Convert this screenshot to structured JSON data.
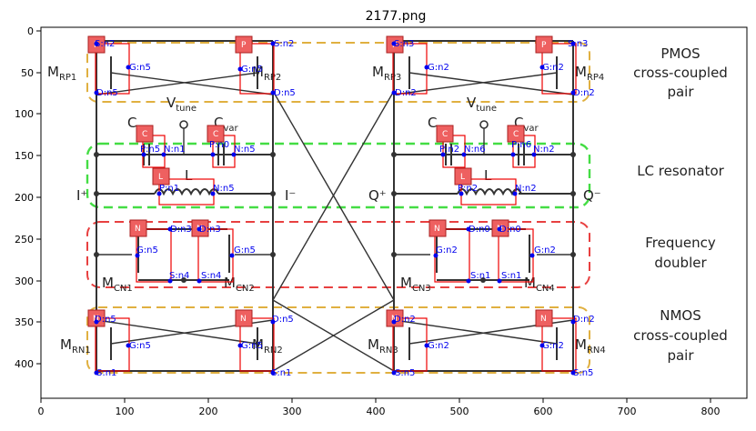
{
  "figure": {
    "title": "2177.png",
    "x_ticks": [
      "0",
      "100",
      "200",
      "300",
      "400",
      "500",
      "600",
      "700",
      "800"
    ],
    "y_ticks": [
      "0",
      "50",
      "100",
      "150",
      "200",
      "250",
      "300",
      "350",
      "400"
    ]
  },
  "blocks": {
    "pmos": {
      "line1": "PMOS",
      "line2": "cross-coupled",
      "line3": "pair"
    },
    "lc": {
      "line1": "LC resonator"
    },
    "doubler": {
      "line1": "Frequency",
      "line2": "doubler"
    },
    "nmos": {
      "line1": "NMOS",
      "line2": "cross-coupled",
      "line3": "pair"
    }
  },
  "labels": {
    "mrp1": {
      "main": "M",
      "sub": "RP1"
    },
    "mrp2": {
      "main": "M",
      "sub": "RP2"
    },
    "mrp3": {
      "main": "M",
      "sub": "RP3"
    },
    "mrp4": {
      "main": "M",
      "sub": "RP4"
    },
    "vtune1": {
      "main": "V",
      "sub": "tune"
    },
    "vtune2": {
      "main": "V",
      "sub": "tune"
    },
    "cvar1": {
      "main": "C",
      "sub": "var"
    },
    "cvar2": {
      "main": "C",
      "sub": "var"
    },
    "cvar3": {
      "main": "C",
      "sub": "var"
    },
    "cvar4": {
      "main": "C",
      "sub": "var"
    },
    "l1": "L",
    "l2": "L",
    "iplus": "I⁺",
    "iminus": "I⁻",
    "qplus": "Q⁺",
    "qminus": "Q⁻",
    "mcn1": {
      "main": "M",
      "sub": "CN1"
    },
    "mcn2": {
      "main": "M",
      "sub": "CN2"
    },
    "mcn3": {
      "main": "M",
      "sub": "CN3"
    },
    "mcn4": {
      "main": "M",
      "sub": "CN4"
    },
    "mrn1": {
      "main": "M",
      "sub": "RN1"
    },
    "mrn2": {
      "main": "M",
      "sub": "RN2"
    },
    "mrn3": {
      "main": "M",
      "sub": "RN3"
    },
    "mrn4": {
      "main": "M",
      "sub": "RN4"
    }
  },
  "annotations": {
    "tags": {
      "p1": "P",
      "p2": "P",
      "p3": "P",
      "p4": "P",
      "c1": "C",
      "c2": "C",
      "c3": "C",
      "c4": "C",
      "l1": "L",
      "l2": "L",
      "n1": "N",
      "n2": "N",
      "n3": "N",
      "n4": "N",
      "nr1": "N",
      "nr2": "N",
      "nr3": "N",
      "nr4": "N"
    },
    "pins": {
      "p1s": "S:n2",
      "p1g": "G:n5",
      "p1d": "D:n5",
      "p2s": "S:n2",
      "p2g": "G:n5",
      "p2d": "D:n5",
      "p3s": "S:n3",
      "p3g": "G:n2",
      "p3d": "D:n2",
      "p4s": "S:n3",
      "p4g": "G:n2",
      "p4d": "D:n2",
      "c1a": "P:n5",
      "c1b": "N:n1",
      "c2a": "P:n0",
      "c2b": "N:n5",
      "c3a": "P:n2",
      "c3b": "N:n6",
      "c4a": "P:n6",
      "c4b": "N:n2",
      "l1a": "P:n1",
      "l1b": "N:n5",
      "l2a": "P:n2",
      "l2b": "N:n2",
      "n1d": "D:n3",
      "n1g": "G:n5",
      "n1s": "S:n4",
      "n2d": "D:n3",
      "n2g": "G:n5",
      "n2s": "S:n4",
      "n3d": "D:n0",
      "n3g": "G:n2",
      "n3s": "S:n1",
      "n4d": "D:n0",
      "n4g": "G:n2",
      "n4s": "S:n1",
      "r1d": "D:n5",
      "r1g": "G:n5",
      "r1s": "S:n1",
      "r2d": "D:n5",
      "r2g": "G:n5",
      "r2s": "S:n1",
      "r3d": "D:n2",
      "r3g": "G:n2",
      "r3s": "S:n5",
      "r4d": "D:n2",
      "r4g": "G:n2",
      "r4s": "S:n5"
    }
  },
  "colors": {
    "pmos_box": "#e0b040",
    "lc_box": "#44dd44",
    "doubler_box": "#e84040",
    "nmos_box": "#e0b040",
    "component_box": "#ee0000",
    "tag_fill": "#ee6060",
    "pin_dot": "#0000ee"
  }
}
